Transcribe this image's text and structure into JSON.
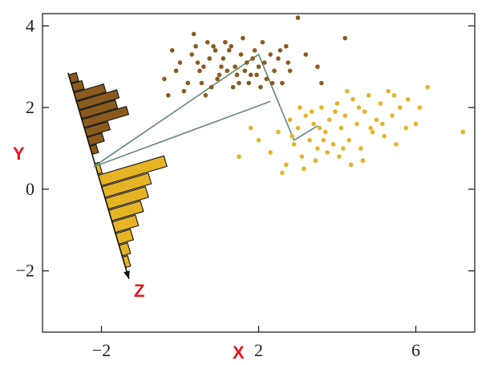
{
  "chart_data": {
    "type": "scatter",
    "axis_labels": {
      "x": "X",
      "y": "Y",
      "projection": "Z"
    },
    "xlim": [
      -3.5,
      7.5
    ],
    "ylim": [
      -3.5,
      4.3
    ],
    "xticks": [
      -2,
      2,
      6
    ],
    "yticks": [
      -2,
      0,
      2,
      4
    ],
    "grid": false,
    "colors": {
      "series_a": "#8b5a1c",
      "series_b": "#e6b325",
      "projection_line": "#5f8a6e",
      "axis": "#222222",
      "label": "#e8151b"
    },
    "series": [
      {
        "points": [
          [
            -0.4,
            2.7
          ],
          [
            -0.3,
            2.3
          ],
          [
            -0.1,
            2.9
          ],
          [
            0.0,
            3.1
          ],
          [
            0.2,
            2.6
          ],
          [
            0.3,
            3.3
          ],
          [
            0.4,
            3.5
          ],
          [
            0.5,
            2.9
          ],
          [
            0.6,
            3.0
          ],
          [
            0.7,
            3.6
          ],
          [
            0.8,
            2.5
          ],
          [
            0.9,
            3.4
          ],
          [
            1.0,
            2.8
          ],
          [
            1.1,
            3.2
          ],
          [
            1.2,
            2.9
          ],
          [
            1.3,
            3.5
          ],
          [
            1.4,
            3.0
          ],
          [
            1.5,
            2.6
          ],
          [
            1.6,
            3.7
          ],
          [
            1.7,
            3.1
          ],
          [
            1.8,
            2.8
          ],
          [
            1.9,
            3.4
          ],
          [
            2.0,
            3.0
          ],
          [
            2.1,
            3.6
          ],
          [
            2.2,
            2.7
          ],
          [
            2.3,
            3.3
          ],
          [
            2.4,
            2.9
          ],
          [
            2.5,
            3.2
          ],
          [
            2.6,
            2.6
          ],
          [
            2.7,
            3.5
          ],
          [
            2.8,
            2.9
          ],
          [
            3.0,
            4.2
          ],
          [
            3.2,
            3.3
          ],
          [
            3.5,
            3.0
          ],
          [
            3.6,
            2.6
          ],
          [
            4.2,
            3.7
          ],
          [
            -0.2,
            3.4
          ],
          [
            0.1,
            2.4
          ],
          [
            0.35,
            3.8
          ],
          [
            0.55,
            2.6
          ],
          [
            0.75,
            3.2
          ],
          [
            0.95,
            2.7
          ],
          [
            1.15,
            3.6
          ],
          [
            1.35,
            2.5
          ],
          [
            1.55,
            3.3
          ],
          [
            1.75,
            2.6
          ],
          [
            1.95,
            2.8
          ],
          [
            2.15,
            3.1
          ],
          [
            2.35,
            2.6
          ],
          [
            2.55,
            3.4
          ],
          [
            2.75,
            3.1
          ],
          [
            1.05,
            3.0
          ],
          [
            1.25,
            3.4
          ],
          [
            1.45,
            2.8
          ],
          [
            0.65,
            2.3
          ],
          [
            1.85,
            3.2
          ],
          [
            2.05,
            2.5
          ],
          [
            0.45,
            3.1
          ],
          [
            1.65,
            2.9
          ],
          [
            0.85,
            3.5
          ]
        ]
      },
      {
        "points": [
          [
            1.5,
            0.8
          ],
          [
            1.8,
            1.5
          ],
          [
            2.0,
            1.2
          ],
          [
            2.3,
            0.9
          ],
          [
            2.5,
            1.4
          ],
          [
            2.7,
            0.6
          ],
          [
            2.8,
            1.7
          ],
          [
            2.9,
            1.1
          ],
          [
            3.0,
            1.5
          ],
          [
            3.1,
            0.8
          ],
          [
            3.2,
            1.8
          ],
          [
            3.3,
            1.2
          ],
          [
            3.4,
            1.6
          ],
          [
            3.5,
            1.0
          ],
          [
            3.6,
            2.0
          ],
          [
            3.7,
            1.4
          ],
          [
            3.8,
            1.7
          ],
          [
            3.9,
            1.1
          ],
          [
            4.0,
            2.1
          ],
          [
            4.1,
            1.5
          ],
          [
            4.2,
            1.8
          ],
          [
            4.3,
            1.2
          ],
          [
            4.4,
            2.2
          ],
          [
            4.5,
            1.6
          ],
          [
            4.6,
            1.0
          ],
          [
            4.7,
            1.9
          ],
          [
            4.8,
            2.3
          ],
          [
            4.9,
            1.4
          ],
          [
            5.0,
            1.7
          ],
          [
            5.1,
            2.1
          ],
          [
            5.2,
            1.3
          ],
          [
            5.3,
            2.4
          ],
          [
            5.4,
            1.8
          ],
          [
            5.5,
            1.1
          ],
          [
            5.6,
            2.0
          ],
          [
            5.8,
            2.2
          ],
          [
            6.0,
            1.6
          ],
          [
            6.3,
            2.5
          ],
          [
            7.2,
            1.4
          ],
          [
            2.6,
            0.4
          ],
          [
            3.15,
            0.5
          ],
          [
            3.45,
            0.7
          ],
          [
            3.75,
            0.9
          ],
          [
            4.05,
            0.8
          ],
          [
            4.35,
            0.6
          ],
          [
            4.65,
            0.7
          ],
          [
            2.85,
            1.3
          ],
          [
            3.05,
            2.0
          ],
          [
            3.35,
            1.9
          ],
          [
            3.65,
            1.2
          ],
          [
            3.95,
            1.9
          ],
          [
            4.25,
            2.4
          ],
          [
            4.55,
            2.0
          ],
          [
            4.85,
            1.5
          ],
          [
            5.15,
            1.6
          ],
          [
            5.45,
            2.3
          ],
          [
            5.75,
            1.5
          ],
          [
            6.1,
            2.0
          ],
          [
            4.15,
            1.0
          ],
          [
            3.55,
            1.5
          ]
        ]
      }
    ],
    "projection_axis": {
      "from": [
        -2.85,
        2.85
      ],
      "to": [
        -1.3,
        -2.2
      ]
    },
    "projection_path": [
      [
        -2.2,
        0.55
      ],
      [
        2.0,
        3.3
      ],
      [
        2.9,
        1.2
      ],
      [
        3.5,
        1.55
      ]
    ],
    "projection_connector": [
      [
        -2.2,
        0.55
      ],
      [
        2.3,
        2.15
      ]
    ],
    "histogram_a_lengths": [
      0.18,
      0.25,
      0.7,
      0.95,
      0.85,
      1.05,
      0.55,
      0.35,
      0.15
    ],
    "histogram_b_lengths": [
      0.1,
      1.55,
      1.1,
      0.95,
      0.75,
      0.55,
      0.35,
      0.2,
      0.12
    ]
  }
}
